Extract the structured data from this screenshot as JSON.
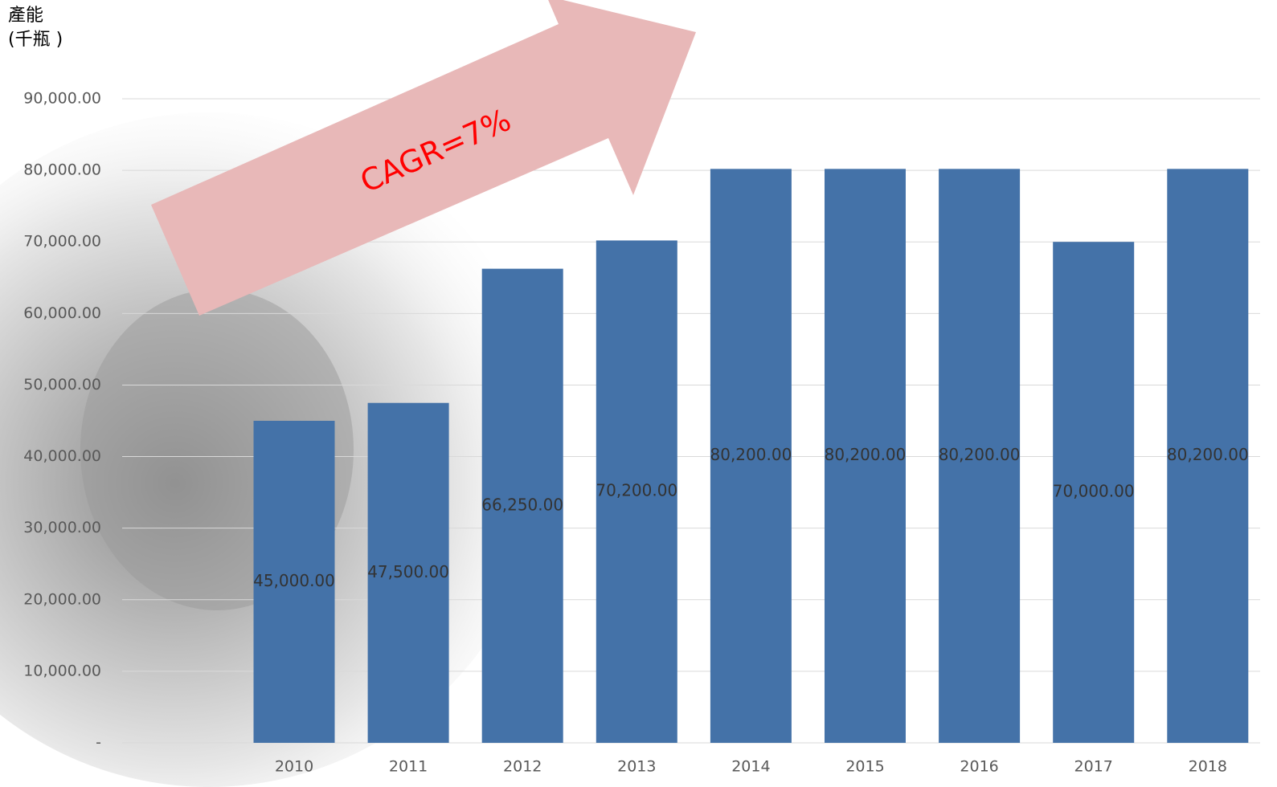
{
  "chart_data": {
    "type": "bar",
    "y_label_lines": [
      "產能",
      "(千瓶 )"
    ],
    "annotation": "CAGR=7%",
    "categories": [
      "2010",
      "2011",
      "2012",
      "2013",
      "2014",
      "2015",
      "2016",
      "2017",
      "2018"
    ],
    "values": [
      45000,
      47500,
      66250,
      70200,
      80200,
      80200,
      80200,
      70000,
      80200
    ],
    "value_labels": [
      "45,000.00",
      "47,500.00",
      "66,250.00",
      "70,200.00",
      "80,200.00",
      "80,200.00",
      "80,200.00",
      "70,000.00",
      "80,200.00"
    ],
    "color": "#4472a8",
    "ylim": [
      0,
      90000
    ],
    "yticks": [
      {
        "value": 0,
        "label": "-"
      },
      {
        "value": 10000,
        "label": "10,000.00"
      },
      {
        "value": 20000,
        "label": "20,000.00"
      },
      {
        "value": 30000,
        "label": "30,000.00"
      },
      {
        "value": 40000,
        "label": "40,000.00"
      },
      {
        "value": 50000,
        "label": "50,000.00"
      },
      {
        "value": 60000,
        "label": "60,000.00"
      },
      {
        "value": 70000,
        "label": "70,000.00"
      },
      {
        "value": 80000,
        "label": "80,000.00"
      },
      {
        "value": 90000,
        "label": "90,000.00"
      }
    ],
    "grid": true
  }
}
